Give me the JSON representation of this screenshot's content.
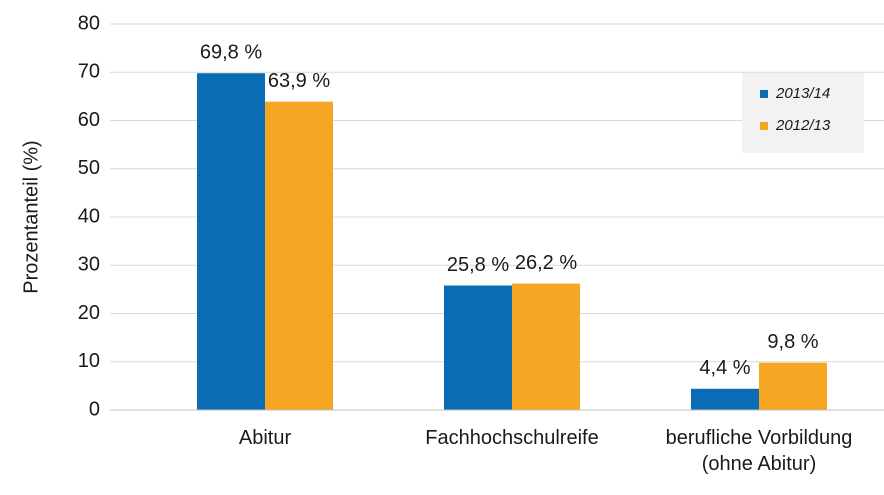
{
  "chart_data": {
    "type": "bar",
    "y_label": "Prozentanteil (%)",
    "categories": [
      "Abitur",
      "Fachhochschulreife",
      "berufliche Vorbildung (ohne Abitur)"
    ],
    "series": [
      {
        "name": "2013/14",
        "color": "#0a6cb5",
        "values": [
          69.8,
          25.8,
          4.4
        ],
        "value_labels": [
          "69,8 %",
          "25,8 %",
          "4,4 %"
        ]
      },
      {
        "name": "2012/13",
        "color": "#f5a623",
        "values": [
          63.9,
          26.2,
          9.8
        ],
        "value_labels": [
          "63,9 %",
          "26,2 %",
          "9,8 %"
        ]
      }
    ],
    "ylim": [
      0,
      80
    ],
    "yticks": [
      0,
      10,
      20,
      30,
      40,
      50,
      60,
      70,
      80
    ],
    "grid": true,
    "legend": "upper right"
  }
}
